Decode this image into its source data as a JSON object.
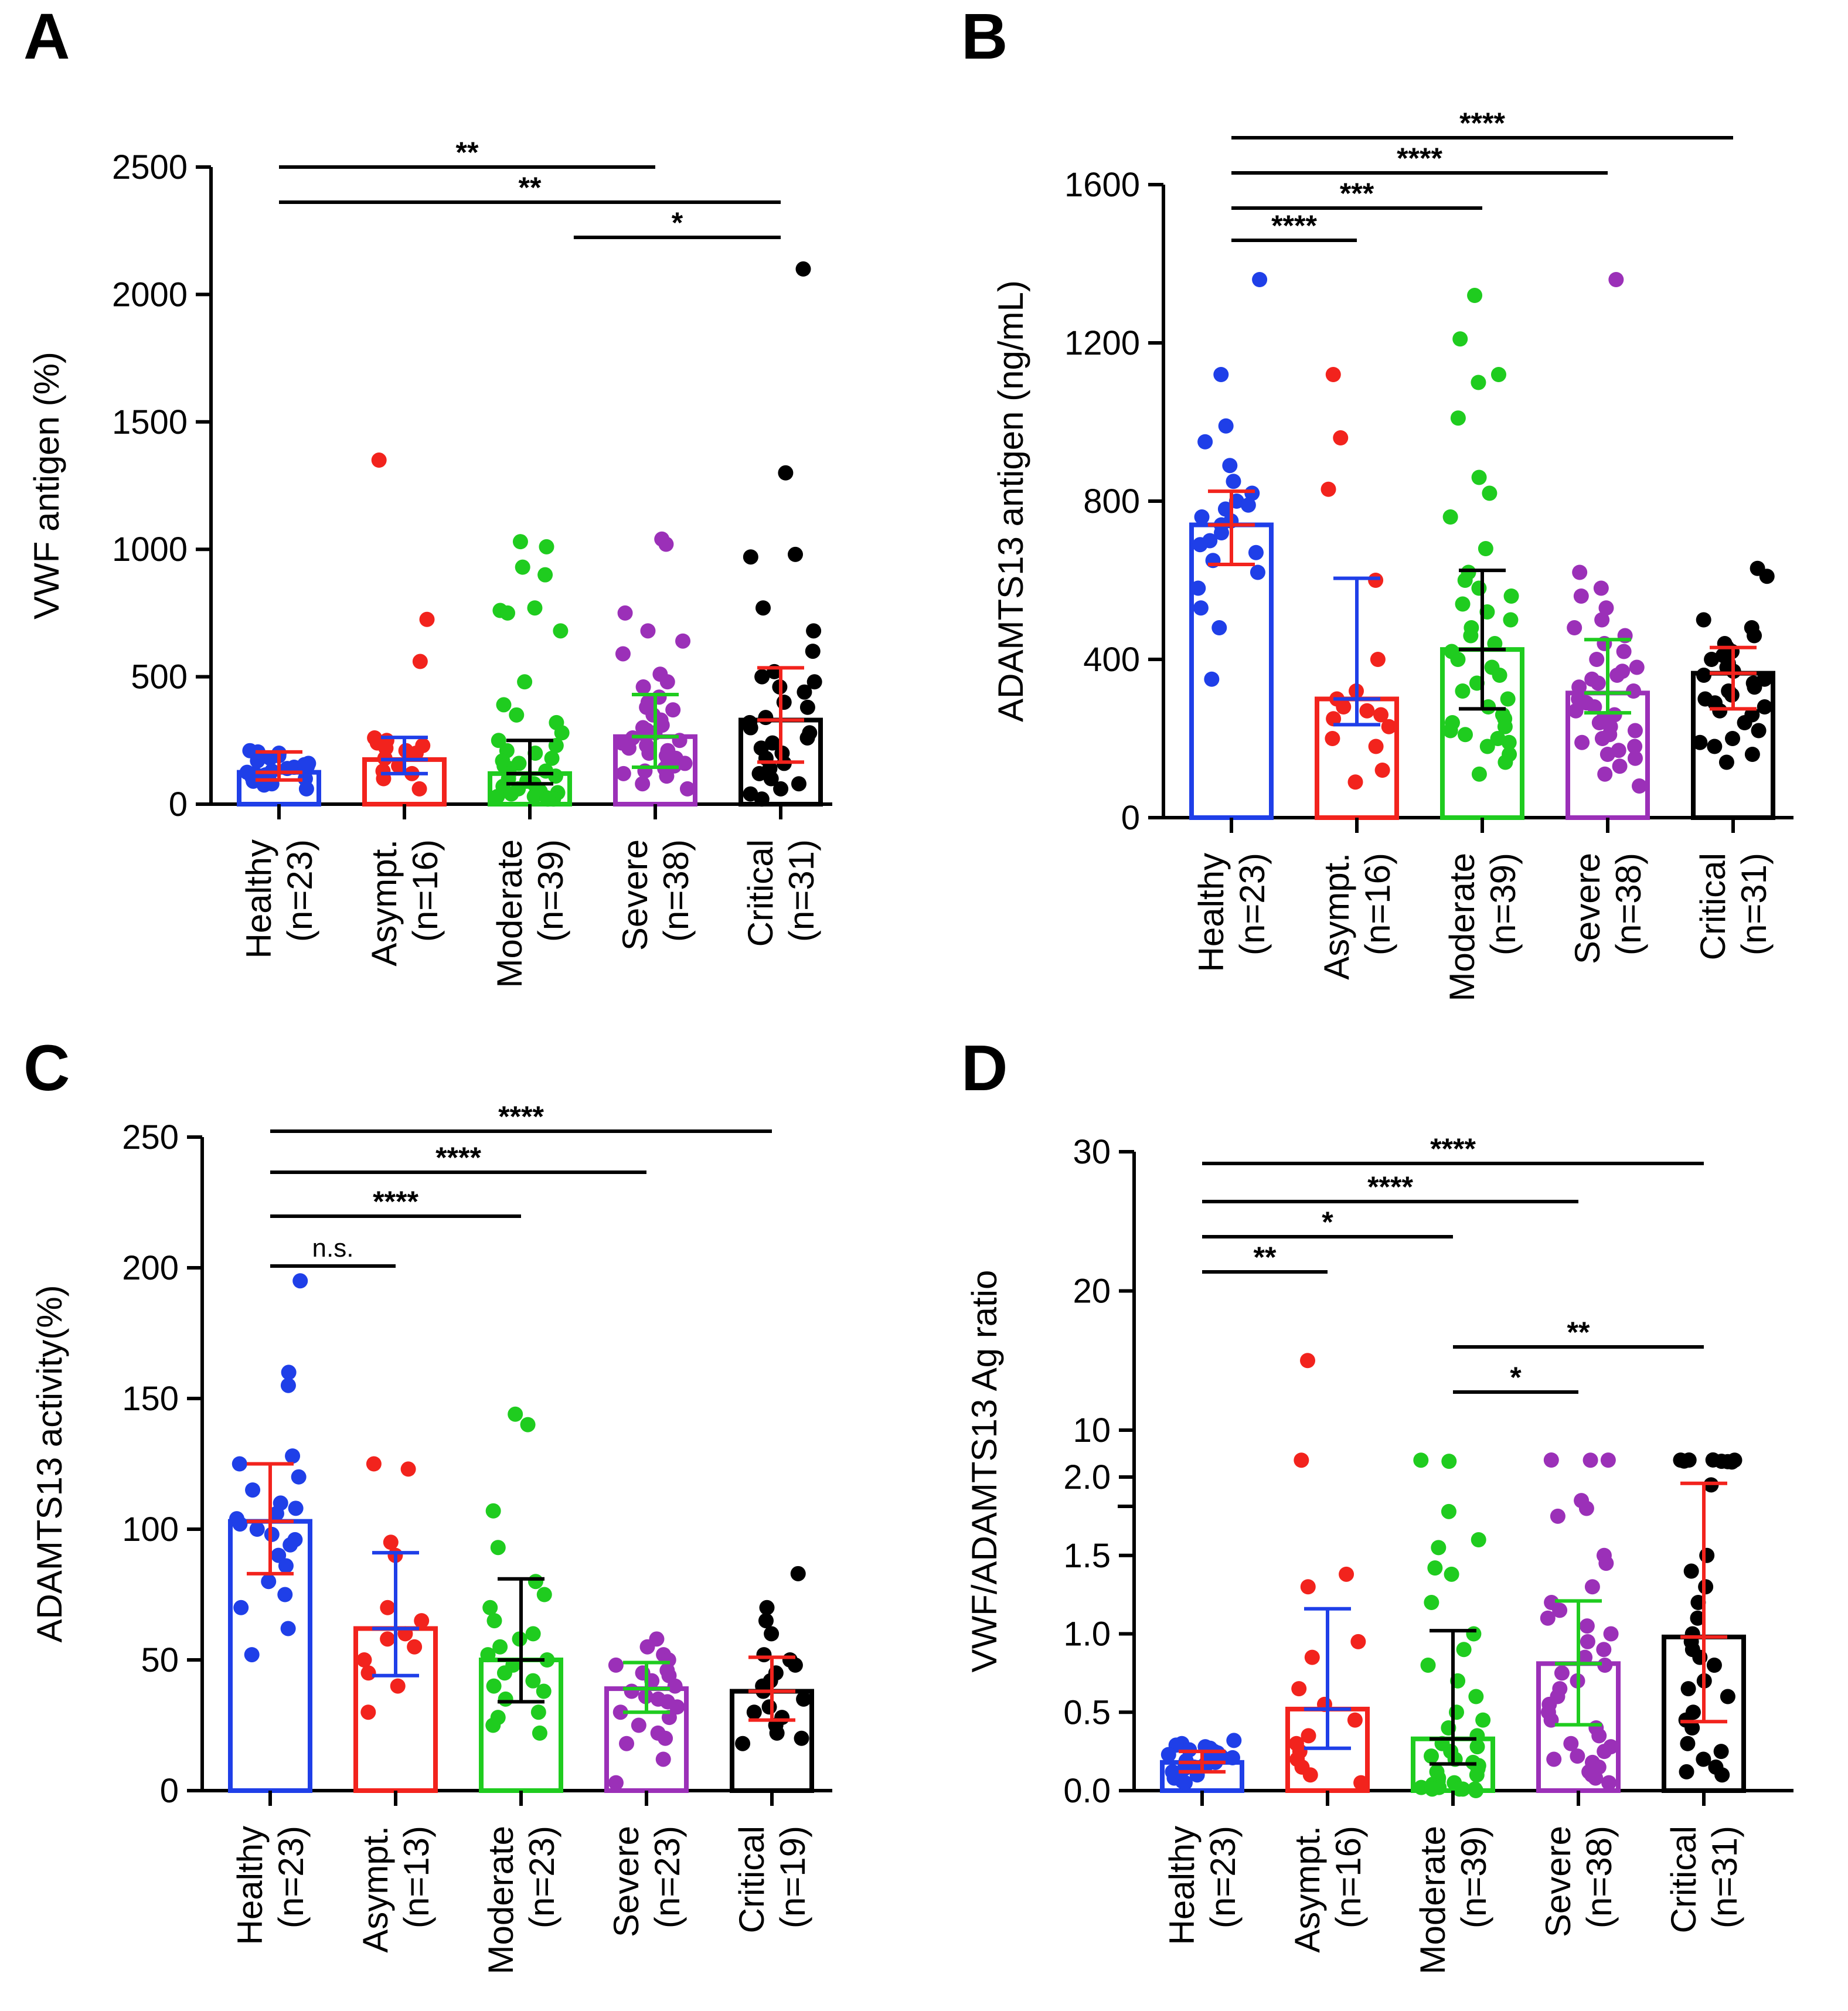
{
  "figure": {
    "description_visible": false
  },
  "chart_data": [
    {
      "panel": "A",
      "type": "bar",
      "ylabel": "VWF antigen (%)",
      "ylim": [
        0,
        2500
      ],
      "ticks": [
        0,
        500,
        1000,
        1500,
        2000,
        2500
      ],
      "categories": [
        "Healthy",
        "Asympt.",
        "Moderate",
        "Severe",
        "Critical"
      ],
      "n_labels": [
        "(n=23)",
        "(n=16)",
        "(n=39)",
        "(n=38)",
        "(n=31)"
      ],
      "colors": [
        "#1f3fe8",
        "#f2231d",
        "#1fcc1f",
        "#9b30b8",
        "#000000"
      ],
      "errcolors": [
        "#f2231d",
        "#1f3fe8",
        "#000000",
        "#1fcc1f",
        "#f2231d"
      ],
      "bars": [
        125,
        175,
        120,
        265,
        330
      ],
      "err_low": [
        95,
        120,
        80,
        145,
        165
      ],
      "err_high": [
        205,
        262,
        250,
        430,
        535
      ],
      "points": [
        [
          100,
          150,
          210,
          80,
          60,
          120,
          180,
          200,
          140,
          110,
          90,
          160,
          130,
          170,
          190,
          75,
          105,
          145,
          115,
          95,
          125,
          155,
          205
        ],
        [
          1350,
          725,
          560,
          260,
          250,
          240,
          230,
          220,
          210,
          200,
          180,
          150,
          130,
          120,
          100,
          60
        ],
        [
          1030,
          1010,
          930,
          900,
          770,
          760,
          750,
          680,
          480,
          390,
          350,
          320,
          280,
          250,
          230,
          210,
          200,
          180,
          170,
          160,
          150,
          140,
          130,
          120,
          110,
          100,
          90,
          80,
          70,
          60,
          50,
          45,
          40,
          35,
          30,
          30,
          25,
          20,
          20
        ],
        [
          1040,
          1020,
          750,
          680,
          640,
          590,
          510,
          480,
          460,
          420,
          400,
          380,
          370,
          350,
          330,
          310,
          300,
          290,
          280,
          270,
          260,
          250,
          240,
          230,
          220,
          210,
          200,
          190,
          180,
          170,
          160,
          150,
          140,
          130,
          120,
          110,
          80,
          60
        ],
        [
          2100,
          1300,
          980,
          970,
          770,
          680,
          600,
          520,
          500,
          480,
          460,
          440,
          400,
          380,
          340,
          320,
          300,
          280,
          260,
          240,
          220,
          200,
          180,
          160,
          140,
          120,
          100,
          80,
          60,
          40,
          20
        ]
      ],
      "brackets": [
        {
          "from": 0,
          "to": 3,
          "label": "**"
        },
        {
          "from": 0,
          "to": 4,
          "label": "**"
        },
        {
          "from": 2.35,
          "to": 4,
          "label": "*"
        }
      ]
    },
    {
      "panel": "B",
      "type": "bar",
      "ylabel": "ADAMTS13 antigen (ng/mL)",
      "ylim": [
        0,
        1600
      ],
      "ticks": [
        0,
        400,
        800,
        1200,
        1600
      ],
      "categories": [
        "Healthy",
        "Asympt.",
        "Moderate",
        "Severe",
        "Critical"
      ],
      "n_labels": [
        "(n=23)",
        "(n=16)",
        "(n=39)",
        "(n=38)",
        "(n=31)"
      ],
      "colors": [
        "#1f3fe8",
        "#f2231d",
        "#1fcc1f",
        "#9b30b8",
        "#000000"
      ],
      "errcolors": [
        "#f2231d",
        "#1f3fe8",
        "#000000",
        "#1fcc1f",
        "#f2231d"
      ],
      "bars": [
        740,
        300,
        425,
        315,
        365
      ],
      "err_low": [
        640,
        235,
        275,
        265,
        275
      ],
      "err_high": [
        825,
        605,
        625,
        450,
        430
      ],
      "points": [
        [
          1360,
          1120,
          990,
          950,
          890,
          850,
          820,
          800,
          790,
          780,
          760,
          750,
          740,
          720,
          700,
          690,
          670,
          650,
          620,
          580,
          530,
          480,
          350
        ],
        [
          1120,
          960,
          830,
          600,
          400,
          320,
          300,
          280,
          270,
          260,
          250,
          230,
          200,
          180,
          120,
          90
        ],
        [
          1320,
          1210,
          1120,
          1100,
          1010,
          860,
          820,
          760,
          680,
          620,
          600,
          580,
          560,
          540,
          520,
          500,
          480,
          460,
          440,
          420,
          400,
          380,
          360,
          340,
          320,
          300,
          280,
          260,
          250,
          240,
          230,
          220,
          210,
          200,
          190,
          180,
          160,
          140,
          110
        ],
        [
          1360,
          620,
          580,
          560,
          530,
          500,
          480,
          460,
          440,
          420,
          400,
          380,
          370,
          360,
          350,
          340,
          330,
          320,
          310,
          300,
          290,
          280,
          270,
          260,
          250,
          240,
          230,
          220,
          210,
          200,
          190,
          180,
          170,
          160,
          150,
          130,
          110,
          80
        ],
        [
          630,
          610,
          500,
          480,
          460,
          440,
          430,
          420,
          410,
          400,
          390,
          380,
          370,
          360,
          350,
          340,
          330,
          320,
          310,
          300,
          290,
          280,
          270,
          260,
          240,
          220,
          200,
          190,
          180,
          160,
          140
        ]
      ],
      "brackets": [
        {
          "from": 0,
          "to": 1,
          "label": "****"
        },
        {
          "from": 0,
          "to": 2,
          "label": "***"
        },
        {
          "from": 0,
          "to": 3,
          "label": "****"
        },
        {
          "from": 0,
          "to": 4,
          "label": "****"
        }
      ]
    },
    {
      "panel": "C",
      "type": "bar",
      "ylabel": "ADAMTS13 activity(%)",
      "ylim": [
        0,
        250
      ],
      "ticks": [
        0,
        50,
        100,
        150,
        200,
        250
      ],
      "categories": [
        "Healthy",
        "Asympt.",
        "Moderate",
        "Severe",
        "Critical"
      ],
      "n_labels": [
        "(n=23)",
        "(n=13)",
        "(n=23)",
        "(n=23)",
        "(n=19)"
      ],
      "colors": [
        "#1f3fe8",
        "#f2231d",
        "#1fcc1f",
        "#9b30b8",
        "#000000"
      ],
      "errcolors": [
        "#f2231d",
        "#1f3fe8",
        "#000000",
        "#1fcc1f",
        "#f2231d"
      ],
      "bars": [
        103,
        62,
        50,
        39,
        38
      ],
      "err_low": [
        83,
        44,
        34,
        30,
        27
      ],
      "err_high": [
        125,
        91,
        81,
        49,
        51
      ],
      "points": [
        [
          195,
          160,
          155,
          128,
          125,
          120,
          115,
          110,
          108,
          106,
          104,
          102,
          100,
          98,
          96,
          94,
          90,
          86,
          80,
          75,
          70,
          62,
          52
        ],
        [
          125,
          123,
          95,
          90,
          70,
          65,
          60,
          58,
          55,
          50,
          45,
          40,
          30
        ],
        [
          144,
          140,
          107,
          93,
          80,
          75,
          70,
          65,
          60,
          58,
          55,
          52,
          50,
          48,
          45,
          42,
          40,
          38,
          35,
          30,
          28,
          25,
          22
        ],
        [
          58,
          55,
          52,
          50,
          48,
          46,
          45,
          44,
          42,
          40,
          38,
          36,
          35,
          34,
          32,
          30,
          28,
          25,
          22,
          20,
          18,
          12,
          3
        ],
        [
          83,
          70,
          65,
          60,
          52,
          50,
          48,
          45,
          42,
          40,
          38,
          35,
          32,
          30,
          28,
          25,
          22,
          20,
          18
        ]
      ],
      "brackets": [
        {
          "from": 0,
          "to": 1,
          "label": "n.s."
        },
        {
          "from": 0,
          "to": 2,
          "label": "****"
        },
        {
          "from": 0,
          "to": 3,
          "label": "****"
        },
        {
          "from": 0,
          "to": 4,
          "label": "****"
        }
      ]
    },
    {
      "panel": "D",
      "type": "bar",
      "ylabel": "VWF/ADAMTS13 Ag ratio",
      "ylim": [
        0,
        30
      ],
      "axis_break": [
        2,
        10
      ],
      "ticks": [
        0.0,
        0.5,
        1.0,
        1.5,
        2.0,
        10,
        20,
        30
      ],
      "tick_labels": [
        "0.0",
        "0.5",
        "1.0",
        "1.5",
        "2.0",
        "10",
        "20",
        "30"
      ],
      "categories": [
        "Healthy",
        "Asympt.",
        "Moderate",
        "Severe",
        "Critical"
      ],
      "n_labels": [
        "(n=23)",
        "(n=16)",
        "(n=39)",
        "(n=38)",
        "(n=31)"
      ],
      "colors": [
        "#1f3fe8",
        "#f2231d",
        "#1fcc1f",
        "#9b30b8",
        "#000000"
      ],
      "errcolors": [
        "#f2231d",
        "#1f3fe8",
        "#000000",
        "#1fcc1f",
        "#f2231d"
      ],
      "bars": [
        0.18,
        0.52,
        0.33,
        0.81,
        0.98
      ],
      "err_low": [
        0.12,
        0.27,
        0.17,
        0.42,
        0.44
      ],
      "err_high": [
        0.25,
        1.16,
        1.02,
        1.21,
        1.96
      ],
      "points": [
        [
          0.32,
          0.3,
          0.29,
          0.28,
          0.27,
          0.26,
          0.25,
          0.24,
          0.23,
          0.22,
          0.21,
          0.2,
          0.19,
          0.18,
          0.17,
          0.16,
          0.15,
          0.14,
          0.12,
          0.1,
          0.08,
          0.06,
          0.05
        ],
        [
          15,
          3,
          1.38,
          1.3,
          0.95,
          0.85,
          0.65,
          0.55,
          0.45,
          0.35,
          0.3,
          0.25,
          0.2,
          0.15,
          0.1,
          0.05
        ],
        [
          4.5,
          3,
          1.78,
          1.6,
          1.55,
          1.42,
          1.38,
          1.2,
          1.0,
          0.9,
          0.8,
          0.7,
          0.6,
          0.5,
          0.45,
          0.4,
          0.35,
          0.3,
          0.28,
          0.25,
          0.22,
          0.2,
          0.18,
          0.16,
          0.14,
          0.12,
          0.1,
          0.08,
          0.06,
          0.05,
          0.04,
          0.03,
          0.02,
          0.02,
          0.01,
          0.01,
          0.01,
          0.01,
          0.0
        ],
        [
          3,
          2.9,
          2.8,
          1.85,
          1.8,
          1.75,
          1.5,
          1.45,
          1.3,
          1.2,
          1.15,
          1.1,
          1.05,
          1.0,
          0.95,
          0.9,
          0.85,
          0.8,
          0.75,
          0.7,
          0.65,
          0.6,
          0.55,
          0.5,
          0.45,
          0.4,
          0.35,
          0.3,
          0.28,
          0.25,
          0.22,
          0.2,
          0.18,
          0.15,
          0.12,
          0.1,
          0.08,
          0.05
        ],
        [
          5.5,
          5,
          4.5,
          4.2,
          3,
          2.9,
          2.8,
          2.7,
          1.95,
          1.5,
          1.4,
          1.3,
          1.2,
          1.1,
          1.0,
          0.95,
          0.9,
          0.85,
          0.8,
          0.7,
          0.65,
          0.6,
          0.5,
          0.45,
          0.4,
          0.3,
          0.25,
          0.2,
          0.15,
          0.12,
          0.1
        ]
      ],
      "brackets": [
        {
          "from": 0,
          "to": 1,
          "label": "**"
        },
        {
          "from": 0,
          "to": 2,
          "label": "*"
        },
        {
          "from": 0,
          "to": 3,
          "label": "****"
        },
        {
          "from": 0,
          "to": 4,
          "label": "****"
        },
        {
          "from": 2,
          "to": 3,
          "label": "*"
        },
        {
          "from": 2,
          "to": 4,
          "label": "**"
        }
      ]
    }
  ]
}
